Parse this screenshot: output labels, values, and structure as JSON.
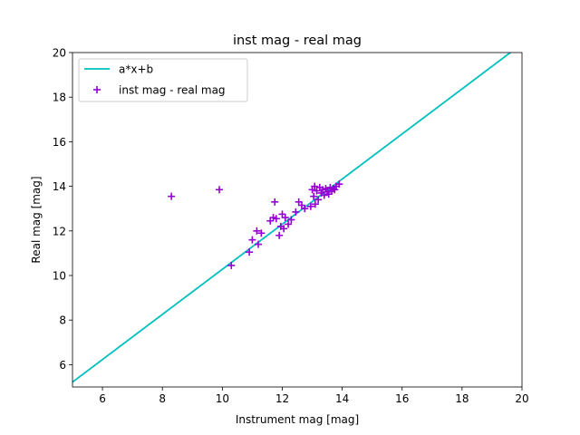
{
  "chart_data": {
    "type": "scatter",
    "title": "inst mag - real mag",
    "xlabel": "Instrument mag [mag]",
    "ylabel": "Real mag [mag]",
    "xlim": [
      5,
      20
    ],
    "ylim": [
      5,
      20
    ],
    "xticks": [
      6,
      8,
      10,
      12,
      14,
      16,
      18,
      20
    ],
    "yticks": [
      6,
      8,
      10,
      12,
      14,
      16,
      18,
      20
    ],
    "grid": false,
    "legend_position": "upper-left",
    "series": [
      {
        "name": "a*x+b",
        "kind": "line",
        "color": "#00bfbf",
        "x": [
          4.98,
          19.61
        ],
        "y": [
          5.2,
          20.0
        ]
      },
      {
        "name": "inst mag - real mag",
        "kind": "scatter",
        "marker": "+",
        "color": "#9400d3",
        "points": [
          [
            8.3,
            13.55
          ],
          [
            9.9,
            13.85
          ],
          [
            10.3,
            10.45
          ],
          [
            10.9,
            11.05
          ],
          [
            11.0,
            11.6
          ],
          [
            11.15,
            12.0
          ],
          [
            11.2,
            11.4
          ],
          [
            11.3,
            11.9
          ],
          [
            11.6,
            12.45
          ],
          [
            11.7,
            12.6
          ],
          [
            11.75,
            13.3
          ],
          [
            11.8,
            12.55
          ],
          [
            11.9,
            11.8
          ],
          [
            11.95,
            12.2
          ],
          [
            12.0,
            12.75
          ],
          [
            12.05,
            12.1
          ],
          [
            12.1,
            12.6
          ],
          [
            12.2,
            12.3
          ],
          [
            12.3,
            12.5
          ],
          [
            12.45,
            12.85
          ],
          [
            12.55,
            13.3
          ],
          [
            12.65,
            13.15
          ],
          [
            12.75,
            13.0
          ],
          [
            12.95,
            13.1
          ],
          [
            13.0,
            13.85
          ],
          [
            13.05,
            13.55
          ],
          [
            13.08,
            14.0
          ],
          [
            13.15,
            13.8
          ],
          [
            13.2,
            13.4
          ],
          [
            13.25,
            13.95
          ],
          [
            13.3,
            13.7
          ],
          [
            13.35,
            13.85
          ],
          [
            13.4,
            13.6
          ],
          [
            13.45,
            13.9
          ],
          [
            13.5,
            13.75
          ],
          [
            13.55,
            13.65
          ],
          [
            13.6,
            13.95
          ],
          [
            13.65,
            13.8
          ],
          [
            13.7,
            13.9
          ],
          [
            13.75,
            13.85
          ],
          [
            13.8,
            14.0
          ],
          [
            13.9,
            14.1
          ],
          [
            13.1,
            13.2
          ]
        ]
      }
    ]
  }
}
